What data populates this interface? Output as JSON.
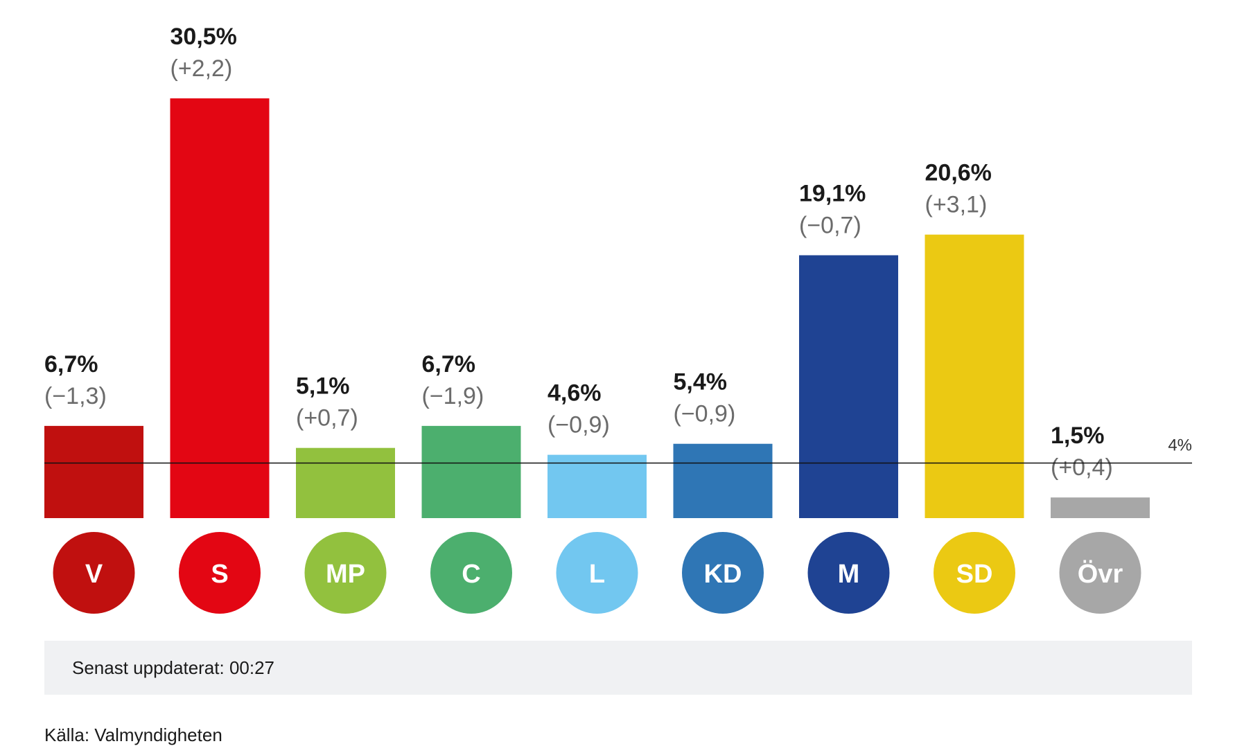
{
  "chart_data": {
    "type": "bar",
    "categories": [
      "V",
      "S",
      "MP",
      "C",
      "L",
      "KD",
      "M",
      "SD",
      "Övr"
    ],
    "values": [
      6.7,
      30.5,
      5.1,
      6.7,
      4.6,
      5.4,
      19.1,
      20.6,
      1.5
    ],
    "value_labels": [
      "6,7%",
      "30,5%",
      "5,1%",
      "6,7%",
      "4,6%",
      "5,4%",
      "19,1%",
      "20,6%",
      "1,5%"
    ],
    "changes": [
      -1.3,
      2.2,
      0.7,
      -1.9,
      -0.9,
      -0.9,
      -0.7,
      3.1,
      0.4
    ],
    "change_labels": [
      "(−1,3)",
      "(+2,2)",
      "(+0,7)",
      "(−1,9)",
      "(−0,9)",
      "(−0,9)",
      "(−0,7)",
      "(+3,1)",
      "(+0,4)"
    ],
    "colors": [
      "#c0100f",
      "#e30613",
      "#92c13e",
      "#4caf6e",
      "#72c7f0",
      "#2f76b5",
      "#1f4393",
      "#ebc913",
      "#a7a7a7"
    ],
    "threshold": {
      "value": 4,
      "label": "4%"
    },
    "ylim": [
      0,
      30.5
    ],
    "title": "",
    "xlabel": "",
    "ylabel": ""
  },
  "footer": {
    "updated": "Senast uppdaterat: 00:27",
    "source": "Källa: Valmyndigheten"
  }
}
